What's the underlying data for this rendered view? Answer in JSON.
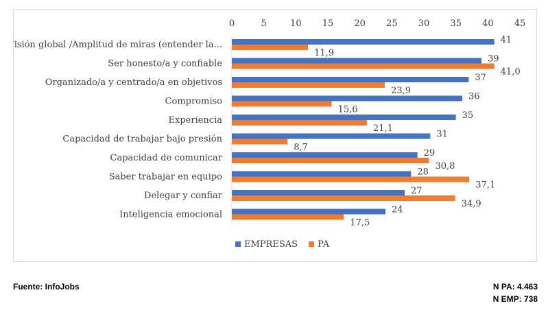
{
  "chart_data": {
    "type": "bar",
    "orientation": "horizontal",
    "categories": [
      "Visión global /Amplitud de miras (entender la...",
      "Ser honesto/a y confiable",
      "Organizado/a y centrado/a en objetivos",
      "Compromiso",
      "Experiencia",
      "Capacidad de trabajar bajo presión",
      "Capacidad de comunicar",
      "Saber trabajar en equipo",
      "Delegar y confiar",
      "Inteligencia emocional"
    ],
    "series": [
      {
        "name": "EMPRESAS",
        "color": "#4472c4",
        "values": [
          41,
          39,
          37,
          36,
          35,
          31,
          29,
          28,
          27,
          24
        ],
        "labels": [
          "41",
          "39",
          "37",
          "36",
          "35",
          "31",
          "29",
          "28",
          "27",
          "24"
        ]
      },
      {
        "name": "PA",
        "color": "#ed7d31",
        "values": [
          11.9,
          41.0,
          23.9,
          15.6,
          21.1,
          8.7,
          30.8,
          37.1,
          34.9,
          17.5
        ],
        "labels": [
          "11,9",
          "41,0",
          "23,9",
          "15,6",
          "21,1",
          "8,7",
          "30,8",
          "37,1",
          "34,9",
          "17,5"
        ]
      }
    ],
    "xlim": [
      0,
      45
    ],
    "xticks": [
      0,
      5,
      10,
      15,
      20,
      25,
      30,
      35,
      40,
      45
    ],
    "axis_position": "top",
    "grid": false,
    "legend_position": "bottom-left",
    "title": "",
    "xlabel": "",
    "ylabel": ""
  },
  "footer": {
    "source": "Fuente: InfoJobs",
    "sample_pa": "N PA: 4.463",
    "sample_emp": "N EMP: 738"
  }
}
